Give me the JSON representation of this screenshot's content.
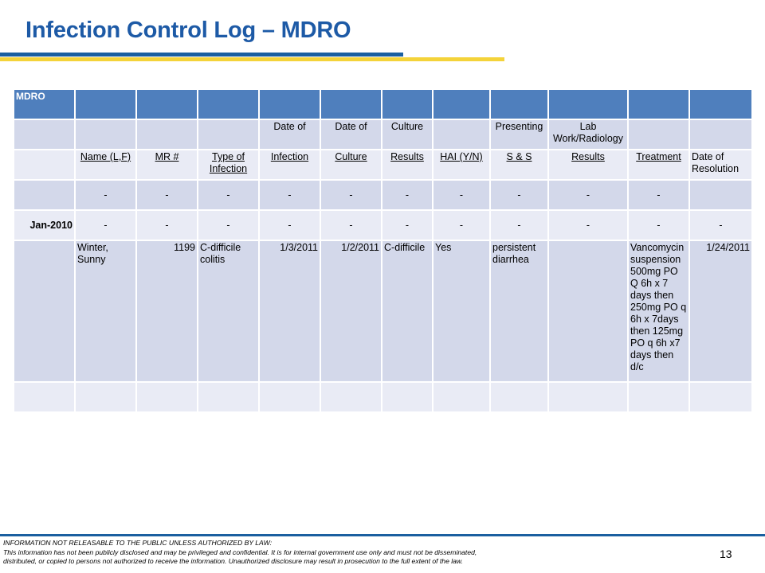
{
  "slide": {
    "title": "Infection Control Log – MDRO",
    "page_number": "13"
  },
  "table": {
    "header_label": "MDRO",
    "subheader_row": [
      "",
      "",
      "",
      "",
      "Date of",
      "Date of",
      "Culture",
      "",
      "Presenting",
      "Lab Work/Radiology",
      "",
      ""
    ],
    "column_headers": [
      "",
      "Name (L,F)",
      "MR #",
      "Type of Infection",
      "Infection",
      "Culture",
      "Results",
      "HAI (Y/N)",
      "S & S",
      "Results",
      "Treatment",
      "Date of Resolution"
    ],
    "dash_row_1": [
      "",
      "-",
      "-",
      "-",
      "-",
      "-",
      "-",
      "-",
      "-",
      "-",
      "-",
      ""
    ],
    "dash_row_2": [
      "Jan-2010",
      "-",
      "-",
      "-",
      "-",
      "-",
      "-",
      "-",
      "-",
      "-",
      "-",
      "-"
    ],
    "entry": {
      "name": "Winter, Sunny",
      "mr": "1199",
      "type": "C-difficile colitis",
      "date_infection": "1/3/2011",
      "date_culture": "1/2/2011",
      "culture_result": "C-difficile",
      "hai": "Yes",
      "symptoms": "persistent diarrhea",
      "lab_results": "",
      "treatment": "Vancomycin suspension 500mg PO Q 6h x 7 days then 250mg PO q 6h x 7days then 125mg PO q 6h x7 days then d/c",
      "resolution": "1/24/2011"
    }
  },
  "footer": {
    "line1": "INFORMATION NOT RELEASABLE TO THE PUBLIC UNLESS AUTHORIZED BY LAW:",
    "line2": "This information has not been publicly disclosed and may be privileged and confidential.  It is for internal government use only and must not be disseminated,",
    "line3": "distributed, or copied to persons not authorized to receive the information.  Unauthorized disclosure may result in prosecution to the full extent of the law."
  },
  "colors": {
    "title": "#1d5aa6",
    "header_fill": "#4f7fbd",
    "row_fill": "#d3d8ea",
    "row_fill_light": "#e9ebf5",
    "rule_blue": "#1a5fa0",
    "rule_yellow": "#f4d33a"
  }
}
